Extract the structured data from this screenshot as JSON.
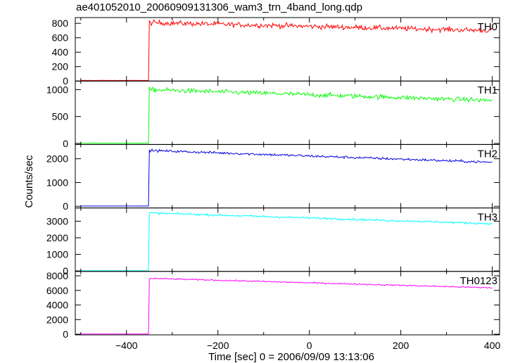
{
  "chart_data": {
    "type": "line",
    "title": "ae401052010_20060909131306_wam3_trn_4band_long.qdp",
    "xlabel": "Time [sec] 0 = 2006/09/09 13:13:06",
    "ylabel": "Counts/sec",
    "xlim": [
      -512,
      416
    ],
    "xticks": [
      -400,
      -200,
      0,
      200,
      400
    ],
    "x_start": -500,
    "x_end": 400,
    "burst_onset": -350,
    "panels": [
      {
        "name": "TH0",
        "color": "#ff0000",
        "ylim": [
          0,
          880
        ],
        "yticks": [
          0,
          200,
          400,
          600,
          800
        ],
        "pre_level": 8,
        "start_level": 810,
        "end_level": 700,
        "noise": 60
      },
      {
        "name": "TH1",
        "color": "#00ff00",
        "ylim": [
          -20,
          1160
        ],
        "yticks": [
          0,
          500,
          1000
        ],
        "pre_level": 5,
        "start_level": 1000,
        "end_level": 800,
        "noise": 75
      },
      {
        "name": "TH2",
        "color": "#0000dd",
        "ylim": [
          -70,
          2600
        ],
        "yticks": [
          0,
          1000,
          2000
        ],
        "pre_level": 10,
        "start_level": 2350,
        "end_level": 1850,
        "noise": 90
      },
      {
        "name": "TH3",
        "color": "#00ffff",
        "ylim": [
          -30,
          3800
        ],
        "yticks": [
          0,
          1000,
          2000,
          3000
        ],
        "pre_level": 15,
        "start_level": 3500,
        "end_level": 2850,
        "noise": 110
      },
      {
        "name": "TH0123",
        "color": "#ff00ff",
        "ylim": [
          -90,
          8600
        ],
        "yticks": [
          0,
          2000,
          4000,
          6000,
          8000
        ],
        "pre_level": 30,
        "start_level": 7650,
        "end_level": 6350,
        "noise": 160
      }
    ]
  }
}
